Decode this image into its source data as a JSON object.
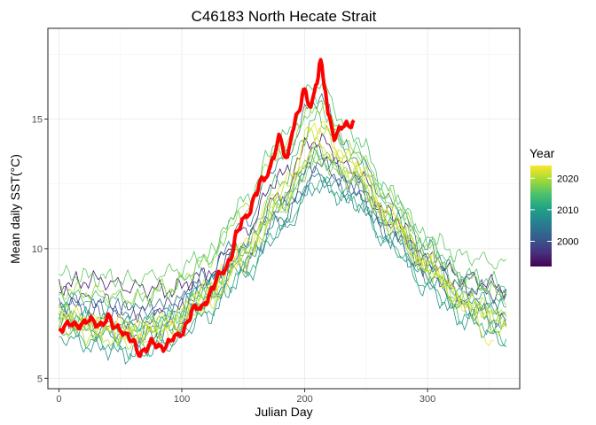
{
  "chart_data": {
    "type": "line",
    "title": "C46183 North Hecate Strait",
    "xlabel": "Julian Day",
    "ylabel": "Mean daily SST(°C)",
    "xlim": [
      -9,
      375
    ],
    "ylim": [
      4.6,
      18.5
    ],
    "x_ticks": [
      0,
      100,
      200,
      300
    ],
    "y_ticks": [
      5,
      10,
      15
    ],
    "grid": true,
    "legend": {
      "title": "Year",
      "placement": "right",
      "type": "colorbar",
      "range": [
        1992,
        2024
      ],
      "ticks": [
        2000,
        2010,
        2020
      ],
      "palette": [
        "#440154",
        "#46327e",
        "#365c8d",
        "#277f8e",
        "#1fa187",
        "#4ac16d",
        "#a0da39",
        "#fde725"
      ]
    },
    "series": [
      {
        "year": 2024,
        "color": "#ff0000",
        "highlight": true,
        "x": [
          0,
          10,
          20,
          30,
          40,
          45,
          50,
          55,
          60,
          65,
          70,
          75,
          80,
          85,
          90,
          95,
          100,
          105,
          110,
          115,
          120,
          125,
          130,
          135,
          140,
          145,
          150,
          155,
          160,
          165,
          170,
          175,
          180,
          185,
          190,
          195,
          200,
          205,
          210,
          213,
          216,
          220,
          225,
          230,
          235,
          240
        ],
        "y": [
          7.0,
          7.0,
          7.2,
          7.1,
          7.3,
          6.9,
          7.0,
          6.7,
          6.3,
          6.0,
          6.2,
          6.3,
          6.2,
          6.3,
          6.4,
          6.5,
          6.8,
          7.3,
          7.6,
          7.7,
          8.1,
          8.4,
          8.9,
          9.3,
          9.7,
          10.5,
          11.2,
          11.5,
          12.0,
          12.6,
          13.0,
          13.6,
          14.2,
          13.5,
          14.6,
          15.2,
          16.1,
          15.6,
          16.4,
          17.1,
          16.3,
          15.1,
          14.3,
          14.6,
          14.8,
          15.0
        ]
      },
      {
        "year": 1994,
        "x": [
          0,
          30,
          60,
          90,
          120,
          150,
          180,
          210,
          240,
          270,
          300,
          330,
          365
        ],
        "y": [
          8.6,
          8.8,
          8.5,
          8.4,
          9.0,
          10.6,
          12.8,
          14.2,
          13.0,
          11.3,
          9.6,
          8.9,
          8.5
        ]
      },
      {
        "year": 1997,
        "x": [
          0,
          30,
          60,
          90,
          120,
          150,
          180,
          210,
          240,
          270,
          300,
          330,
          365
        ],
        "y": [
          8.3,
          8.0,
          7.6,
          7.8,
          8.8,
          10.2,
          12.0,
          13.8,
          12.6,
          11.0,
          9.5,
          8.5,
          8.2
        ]
      },
      {
        "year": 2000,
        "x": [
          0,
          30,
          60,
          90,
          120,
          150,
          180,
          210,
          240,
          270,
          300,
          330,
          365
        ],
        "y": [
          7.9,
          7.5,
          7.2,
          7.5,
          8.5,
          9.8,
          11.6,
          13.3,
          12.4,
          10.8,
          9.2,
          8.1,
          7.6
        ]
      },
      {
        "year": 2002,
        "x": [
          0,
          30,
          60,
          90,
          120,
          150,
          180,
          210,
          240,
          270,
          300,
          330,
          365
        ],
        "y": [
          7.3,
          6.9,
          6.7,
          7.0,
          8.1,
          9.5,
          11.2,
          12.9,
          12.2,
          10.6,
          9.0,
          7.8,
          7.1
        ]
      },
      {
        "year": 2004,
        "x": [
          0,
          30,
          60,
          90,
          120,
          150,
          180,
          210,
          240,
          270,
          300,
          330,
          365
        ],
        "y": [
          8.0,
          7.8,
          7.6,
          7.8,
          8.9,
          10.9,
          13.4,
          15.8,
          13.6,
          11.8,
          10.0,
          8.8,
          8.3
        ]
      },
      {
        "year": 2006,
        "x": [
          0,
          30,
          60,
          90,
          120,
          150,
          180,
          210,
          240,
          270,
          300,
          330,
          365
        ],
        "y": [
          7.1,
          6.7,
          6.5,
          6.8,
          7.9,
          9.3,
          11.0,
          12.7,
          12.0,
          10.4,
          8.8,
          7.6,
          6.9
        ]
      },
      {
        "year": 2008,
        "x": [
          0,
          30,
          60,
          90,
          120,
          150,
          180,
          210,
          240,
          270,
          300,
          330,
          365
        ],
        "y": [
          6.6,
          6.2,
          5.9,
          6.3,
          7.4,
          8.9,
          10.6,
          12.4,
          11.8,
          10.1,
          8.4,
          7.2,
          6.4
        ]
      },
      {
        "year": 2010,
        "x": [
          0,
          30,
          60,
          90,
          120,
          150,
          180,
          210,
          240,
          270,
          300,
          330,
          365
        ],
        "y": [
          7.6,
          7.3,
          7.1,
          7.4,
          8.6,
          10.0,
          11.8,
          13.5,
          12.7,
          11.2,
          9.4,
          8.2,
          7.7
        ]
      },
      {
        "year": 2012,
        "x": [
          0,
          30,
          60,
          90,
          120,
          150,
          180,
          210,
          240,
          270,
          300,
          330,
          365
        ],
        "y": [
          6.9,
          6.4,
          6.1,
          6.5,
          7.6,
          9.1,
          10.8,
          12.6,
          11.9,
          10.2,
          8.6,
          7.4,
          6.6
        ]
      },
      {
        "year": 2014,
        "x": [
          0,
          30,
          60,
          90,
          120,
          150,
          180,
          210,
          240,
          270,
          300,
          330,
          365
        ],
        "y": [
          7.5,
          7.2,
          7.0,
          7.3,
          8.4,
          10.2,
          12.6,
          15.0,
          13.6,
          11.6,
          9.8,
          8.6,
          8.0
        ]
      },
      {
        "year": 2015,
        "x": [
          0,
          30,
          60,
          90,
          120,
          150,
          180,
          210,
          240,
          270,
          300,
          330,
          365
        ],
        "y": [
          8.2,
          8.1,
          8.0,
          8.4,
          9.6,
          11.8,
          14.2,
          16.4,
          14.4,
          12.2,
          10.3,
          9.0,
          8.6
        ]
      },
      {
        "year": 2016,
        "x": [
          0,
          30,
          60,
          90,
          120,
          150,
          180,
          210,
          240,
          270,
          300,
          330,
          365
        ],
        "y": [
          9.0,
          8.9,
          8.8,
          9.1,
          9.7,
          11.4,
          13.7,
          15.6,
          13.8,
          11.9,
          10.4,
          9.7,
          9.4
        ]
      },
      {
        "year": 2017,
        "x": [
          0,
          30,
          60,
          90,
          120,
          150,
          180,
          210,
          240,
          270,
          300,
          330,
          365
        ],
        "y": [
          7.4,
          7.1,
          6.8,
          7.1,
          8.3,
          9.8,
          11.7,
          13.6,
          12.8,
          11.0,
          9.2,
          8.0,
          7.3
        ]
      },
      {
        "year": 2018,
        "x": [
          0,
          30,
          60,
          90,
          120,
          150,
          180,
          210,
          240,
          270,
          300,
          330,
          365
        ],
        "y": [
          7.2,
          6.8,
          6.6,
          6.9,
          8.0,
          9.6,
          11.5,
          13.4,
          12.6,
          10.8,
          9.1,
          7.9,
          7.2
        ]
      },
      {
        "year": 2019,
        "x": [
          0,
          30,
          60,
          90,
          120,
          150,
          180,
          210,
          240,
          270,
          300,
          330,
          365
        ],
        "y": [
          8.4,
          8.3,
          8.1,
          8.5,
          9.5,
          11.5,
          13.8,
          15.5,
          13.8,
          11.9,
          10.0,
          8.8,
          8.2
        ]
      },
      {
        "year": 2020,
        "x": [
          0,
          30,
          60,
          90,
          120,
          150,
          180,
          210,
          240,
          270,
          300,
          330,
          365
        ],
        "y": [
          7.6,
          7.1,
          6.9,
          7.2,
          8.3,
          9.9,
          11.9,
          13.8,
          12.9,
          11.1,
          9.3,
          8.0,
          7.4
        ]
      },
      {
        "year": 2021,
        "x": [
          0,
          30,
          60,
          90,
          120,
          150,
          180,
          210,
          240,
          270,
          300,
          330,
          365
        ],
        "y": [
          7.0,
          6.6,
          6.4,
          6.8,
          7.9,
          9.7,
          12.1,
          14.6,
          13.2,
          11.2,
          9.4,
          8.0,
          7.2
        ]
      },
      {
        "year": 2022,
        "x": [
          0,
          30,
          60,
          90,
          120,
          150,
          180,
          210,
          240,
          270,
          300,
          330,
          365
        ],
        "y": [
          7.3,
          6.9,
          6.6,
          6.9,
          7.8,
          9.4,
          11.6,
          14.0,
          13.0,
          11.0,
          9.2,
          7.7,
          6.8
        ]
      },
      {
        "year": 2023,
        "x": [
          0,
          30,
          60,
          90,
          120,
          150,
          180,
          210,
          240,
          270,
          300,
          330,
          355
        ],
        "y": [
          7.6,
          7.2,
          7.0,
          7.3,
          8.4,
          10.1,
          12.4,
          14.8,
          13.4,
          11.4,
          9.5,
          7.9,
          6.2
        ]
      }
    ]
  }
}
